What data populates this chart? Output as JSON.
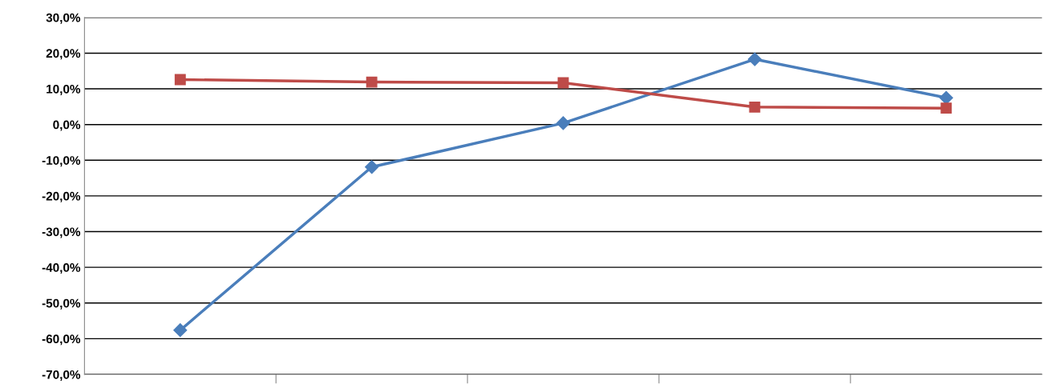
{
  "chart_data": {
    "type": "line",
    "categories": [
      null,
      null,
      null,
      null,
      null
    ],
    "series": [
      {
        "color": "#4a7ebb",
        "marker": "diamond",
        "values": [
          -57.6,
          -11.9,
          0.4,
          18.3,
          7.5
        ]
      },
      {
        "color": "#be4b48",
        "marker": "square",
        "values": [
          12.6,
          11.9,
          11.7,
          4.9,
          4.6
        ]
      }
    ],
    "ylim": [
      -70,
      30
    ],
    "yticks": [
      {
        "value": 30,
        "label": "30,0%"
      },
      {
        "value": 20,
        "label": "20,0%"
      },
      {
        "value": 10,
        "label": "10,0%"
      },
      {
        "value": 0,
        "label": "0,0%"
      },
      {
        "value": -10,
        "label": "-10,0%"
      },
      {
        "value": -20,
        "label": "-20,0%"
      },
      {
        "value": -30,
        "label": "-30,0%"
      },
      {
        "value": -40,
        "label": "-40,0%"
      },
      {
        "value": -50,
        "label": "-50,0%"
      },
      {
        "value": -60,
        "label": "-60,0%"
      },
      {
        "value": -70,
        "label": "-70,0%"
      }
    ],
    "grid": "y",
    "legend": false,
    "line_style": "solid"
  }
}
